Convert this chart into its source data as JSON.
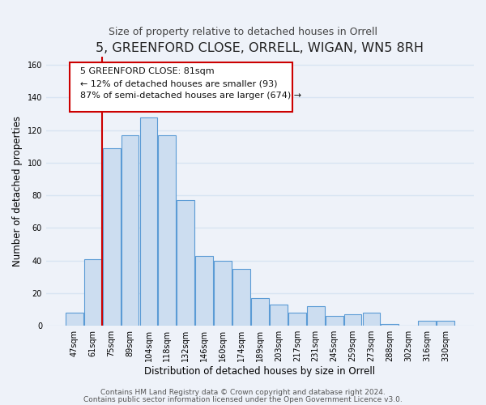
{
  "title": "5, GREENFORD CLOSE, ORRELL, WIGAN, WN5 8RH",
  "subtitle": "Size of property relative to detached houses in Orrell",
  "xlabel": "Distribution of detached houses by size in Orrell",
  "ylabel": "Number of detached properties",
  "bar_labels": [
    "47sqm",
    "61sqm",
    "75sqm",
    "89sqm",
    "104sqm",
    "118sqm",
    "132sqm",
    "146sqm",
    "160sqm",
    "174sqm",
    "189sqm",
    "203sqm",
    "217sqm",
    "231sqm",
    "245sqm",
    "259sqm",
    "273sqm",
    "288sqm",
    "302sqm",
    "316sqm",
    "330sqm"
  ],
  "bar_values": [
    8,
    41,
    109,
    117,
    128,
    117,
    77,
    43,
    40,
    35,
    17,
    13,
    8,
    12,
    6,
    7,
    8,
    1,
    0,
    3,
    3
  ],
  "bar_color": "#ccddf0",
  "bar_edge_color": "#5b9bd5",
  "vline_x": 2,
  "vline_color": "#cc0000",
  "annotation_line1": "5 GREENFORD CLOSE: 81sqm",
  "annotation_line2": "← 12% of detached houses are smaller (93)",
  "annotation_line3": "87% of semi-detached houses are larger (674) →",
  "ylim": [
    0,
    165
  ],
  "yticks": [
    0,
    20,
    40,
    60,
    80,
    100,
    120,
    140,
    160
  ],
  "footer_line1": "Contains HM Land Registry data © Crown copyright and database right 2024.",
  "footer_line2": "Contains public sector information licensed under the Open Government Licence v3.0.",
  "bg_color": "#eef2f9",
  "grid_color": "#d8e4f2",
  "title_fontsize": 11.5,
  "subtitle_fontsize": 9,
  "label_fontsize": 8.5,
  "tick_fontsize": 7,
  "footer_fontsize": 6.5,
  "ann_fontsize": 8
}
